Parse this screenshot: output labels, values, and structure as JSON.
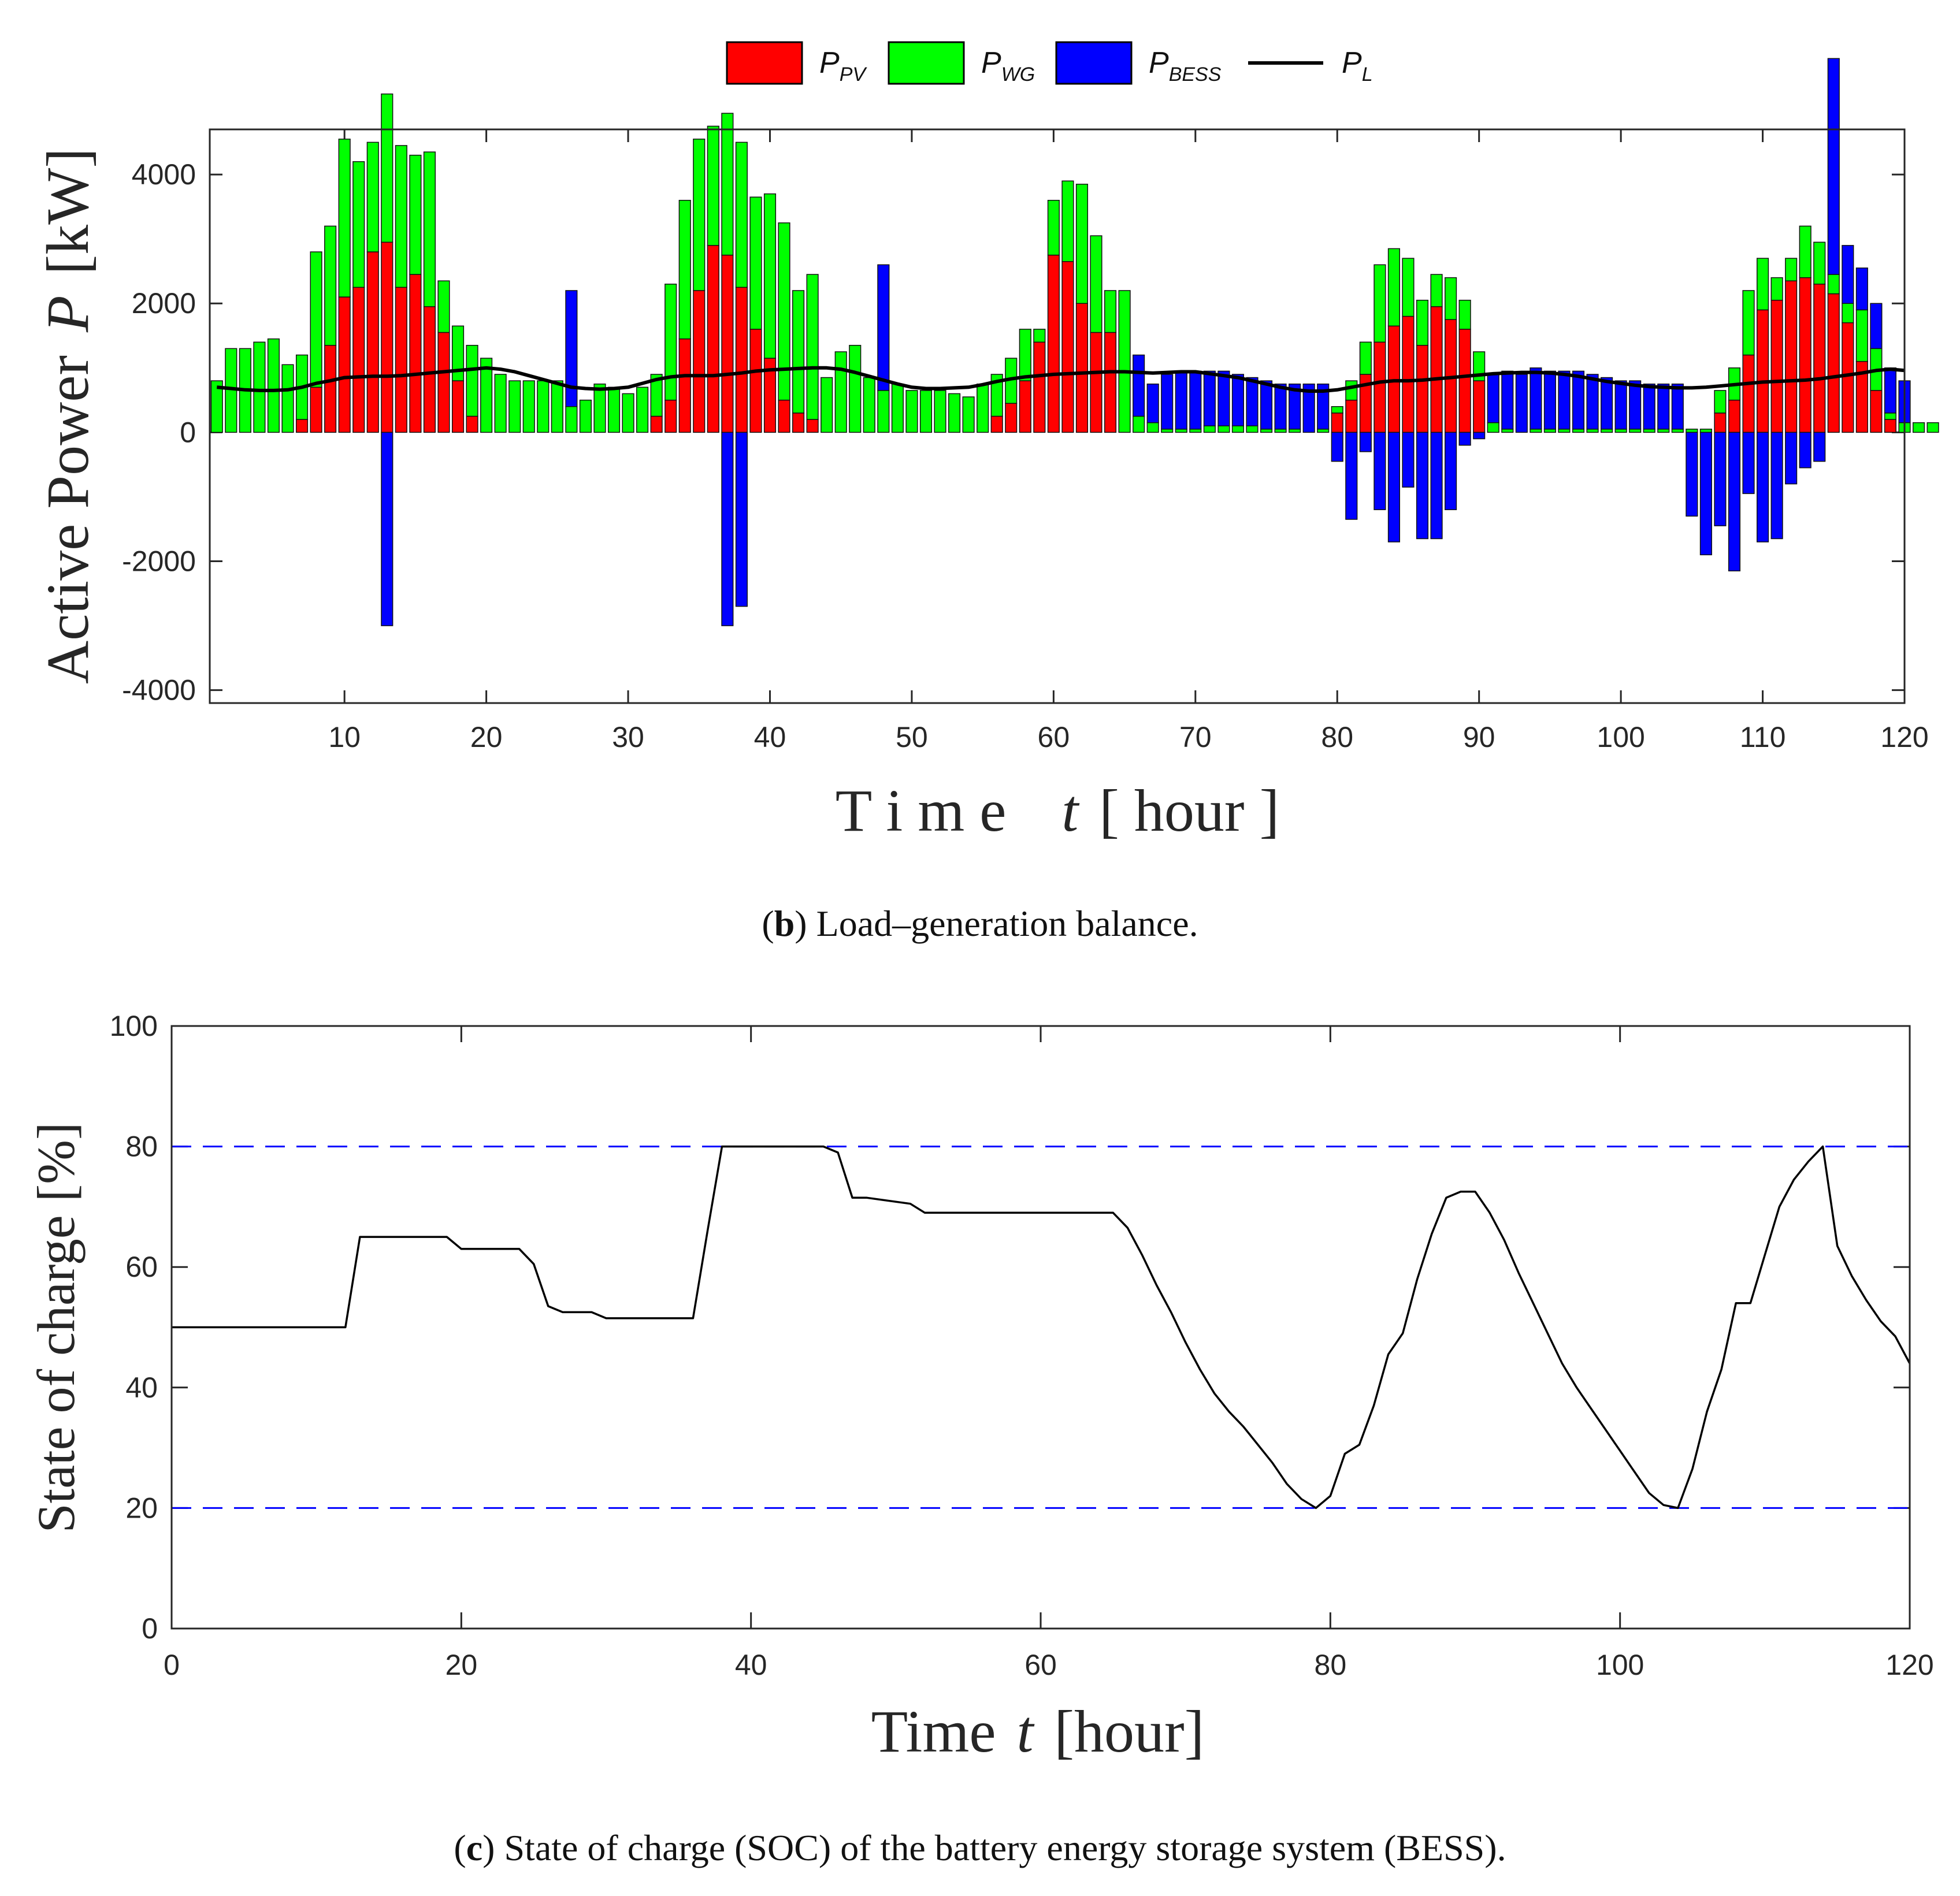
{
  "colors": {
    "pv": "#ff0000",
    "wg": "#00ff00",
    "bess": "#0000ff",
    "load": "#000000",
    "limit": "#0000ff",
    "soc": "#000000"
  },
  "legend": {
    "pv": {
      "main": "P",
      "sub": "PV"
    },
    "wg": {
      "main": "P",
      "sub": "WG"
    },
    "bess": {
      "main": "P",
      "sub": "BESS"
    },
    "load": {
      "main": "P",
      "sub": "L"
    }
  },
  "chart_data": [
    {
      "type": "bar",
      "subtype": "stacked bar with line",
      "xlabel": {
        "word": "T i m e",
        "var": "t",
        "unit": "[ hour ]"
      },
      "ylabel": {
        "word": "Active Power",
        "var": "P",
        "unit": "[kW]"
      },
      "xlim": [
        0.5,
        120
      ],
      "ylim": [
        -4200,
        4700
      ],
      "xticks": [
        10,
        20,
        30,
        40,
        50,
        60,
        70,
        80,
        90,
        100,
        110,
        120
      ],
      "yticks": [
        4000,
        2000,
        0,
        -2000,
        -4000
      ],
      "ytick_labels": [
        "4000",
        "2000",
        "0",
        "-2000",
        "-4000"
      ],
      "caption": {
        "letter": "b",
        "text": "Load–generation balance."
      },
      "series": [
        {
          "name": "P_PV",
          "values": [
            0,
            0,
            0,
            0,
            0,
            0,
            200,
            700,
            1350,
            2100,
            2250,
            2800,
            2950,
            2250,
            2450,
            1950,
            1550,
            800,
            250,
            0,
            0,
            0,
            0,
            0,
            0,
            0,
            0,
            0,
            0,
            0,
            0,
            250,
            500,
            1450,
            2200,
            2900,
            2750,
            2250,
            1600,
            1150,
            500,
            300,
            200,
            0,
            0,
            0,
            0,
            0,
            0,
            0,
            0,
            0,
            0,
            0,
            0,
            250,
            450,
            800,
            1400,
            2750,
            2650,
            2000,
            1550,
            1550,
            0,
            0,
            0,
            0,
            0,
            0,
            0,
            0,
            0,
            0,
            0,
            0,
            0,
            0,
            0,
            300,
            500,
            900,
            1400,
            1650,
            1800,
            1350,
            1950,
            1750,
            1600,
            800,
            0,
            0,
            0,
            0,
            0,
            0,
            0,
            0,
            0,
            0,
            0,
            0,
            0,
            0,
            0,
            0,
            300,
            500,
            1200,
            1900,
            2050,
            2350,
            2400,
            2300,
            2150,
            1700,
            1100,
            650,
            200,
            0,
            0,
            0
          ]
        },
        {
          "name": "P_WG",
          "values": [
            800,
            1300,
            1300,
            1400,
            1450,
            1050,
            1000,
            2100,
            1850,
            2450,
            1950,
            1700,
            2300,
            2200,
            1850,
            2400,
            800,
            850,
            1100,
            1150,
            900,
            800,
            800,
            800,
            800,
            400,
            500,
            750,
            700,
            600,
            700,
            650,
            1800,
            2150,
            2350,
            1850,
            2200,
            2250,
            2050,
            2550,
            2750,
            1900,
            2250,
            850,
            1250,
            1350,
            850,
            650,
            750,
            650,
            650,
            650,
            600,
            550,
            750,
            650,
            700,
            800,
            200,
            850,
            1250,
            1850,
            1500,
            650,
            2200,
            250,
            150,
            50,
            50,
            50,
            100,
            100,
            100,
            100,
            50,
            50,
            50,
            0,
            50,
            100,
            300,
            500,
            1200,
            1200,
            900,
            700,
            500,
            650,
            450,
            450,
            150,
            50,
            0,
            50,
            50,
            50,
            50,
            50,
            50,
            50,
            50,
            50,
            50,
            50,
            50,
            50,
            350,
            500,
            1000,
            800,
            350,
            350,
            800,
            650,
            300,
            300,
            800,
            650,
            100,
            150,
            150,
            150
          ]
        },
        {
          "name": "P_BESS",
          "values": [
            0,
            0,
            0,
            0,
            0,
            0,
            0,
            0,
            0,
            0,
            0,
            0,
            -3000,
            0,
            0,
            0,
            0,
            0,
            0,
            0,
            0,
            0,
            0,
            0,
            0,
            1800,
            0,
            0,
            0,
            0,
            0,
            0,
            0,
            0,
            0,
            0,
            -3000,
            -2700,
            0,
            0,
            0,
            0,
            0,
            0,
            0,
            0,
            0,
            1950,
            0,
            0,
            0,
            0,
            0,
            0,
            0,
            0,
            0,
            0,
            0,
            0,
            0,
            0,
            0,
            0,
            0,
            950,
            600,
            850,
            900,
            900,
            850,
            850,
            800,
            750,
            750,
            700,
            700,
            750,
            700,
            -450,
            -1350,
            -300,
            -1200,
            -1700,
            -850,
            -1650,
            -1650,
            -1200,
            -200,
            -100,
            750,
            900,
            900,
            950,
            900,
            900,
            900,
            850,
            800,
            750,
            750,
            700,
            700,
            700,
            -1300,
            -1900,
            -1450,
            -2150,
            -950,
            -1700,
            -1650,
            -800,
            -550,
            -450,
            3350,
            900,
            650,
            700,
            700,
            650
          ]
        },
        {
          "name": "P_L",
          "values": [
            700,
            680,
            660,
            650,
            650,
            660,
            700,
            760,
            800,
            850,
            860,
            870,
            870,
            880,
            900,
            920,
            940,
            960,
            980,
            1000,
            980,
            940,
            880,
            820,
            760,
            700,
            680,
            670,
            680,
            700,
            760,
            820,
            860,
            880,
            880,
            880,
            900,
            920,
            950,
            970,
            980,
            990,
            1000,
            1000,
            980,
            930,
            870,
            810,
            750,
            700,
            680,
            680,
            690,
            700,
            740,
            790,
            830,
            860,
            880,
            900,
            910,
            920,
            930,
            940,
            940,
            930,
            920,
            930,
            940,
            940,
            910,
            880,
            850,
            800,
            750,
            700,
            660,
            640,
            640,
            660,
            700,
            740,
            780,
            800,
            800,
            810,
            830,
            850,
            870,
            890,
            910,
            920,
            930,
            930,
            920,
            900,
            870,
            830,
            790,
            760,
            730,
            710,
            700,
            690,
            690,
            700,
            720,
            740,
            760,
            780,
            790,
            800,
            810,
            830,
            860,
            890,
            920,
            960,
            980,
            960
          ]
        }
      ]
    },
    {
      "type": "line",
      "xlabel": {
        "word": "Time",
        "var": "t",
        "unit": "[hour]"
      },
      "ylabel": {
        "text": "State of charge [%]"
      },
      "xlim": [
        0,
        120
      ],
      "ylim": [
        0,
        100
      ],
      "xticks": [
        0,
        20,
        40,
        60,
        80,
        100,
        120
      ],
      "yticks": [
        0,
        20,
        40,
        60,
        80,
        100
      ],
      "reference_lines": [
        80,
        20
      ],
      "caption": {
        "letter": "c",
        "text": "State of charge (SOC) of the battery energy storage system (BESS)."
      },
      "series": [
        {
          "name": "SOC",
          "x": [
            0,
            12,
            13,
            19,
            20,
            24,
            25,
            26,
            27,
            29,
            30,
            36,
            37,
            38,
            39,
            45,
            46,
            47,
            48,
            51,
            52,
            53,
            65,
            66,
            67,
            68,
            69,
            70,
            71,
            72,
            73,
            74,
            75,
            76,
            77,
            78,
            79,
            80,
            81,
            82,
            83,
            84,
            85,
            86,
            87,
            88,
            89,
            90,
            91,
            92,
            93,
            94,
            95,
            96,
            97,
            98,
            99,
            100,
            101,
            102,
            103,
            104,
            105,
            106,
            107,
            108,
            109,
            110,
            111,
            112,
            113,
            114,
            115,
            116,
            117,
            118,
            119,
            120
          ],
          "y": [
            50,
            50,
            65,
            65,
            63,
            63,
            60.5,
            53.5,
            52.5,
            52.5,
            51.5,
            51.5,
            66,
            80,
            80,
            80,
            79,
            71.5,
            71.5,
            70.5,
            69,
            69,
            69,
            66.5,
            62,
            57,
            52.5,
            47.5,
            43,
            39,
            36,
            33.5,
            30.5,
            27.5,
            24,
            21.5,
            20,
            22,
            29,
            30.5,
            37,
            45.5,
            49,
            58,
            65.5,
            71.5,
            72.5,
            72.5,
            69,
            64.5,
            59,
            54,
            49,
            44,
            40,
            36.5,
            33,
            29.5,
            26,
            22.5,
            20.5,
            20,
            26.5,
            36,
            43,
            54,
            54,
            62,
            70,
            74.5,
            77.5,
            80,
            63.5,
            58.5,
            54.5,
            51,
            48.5,
            44
          ]
        }
      ]
    }
  ]
}
